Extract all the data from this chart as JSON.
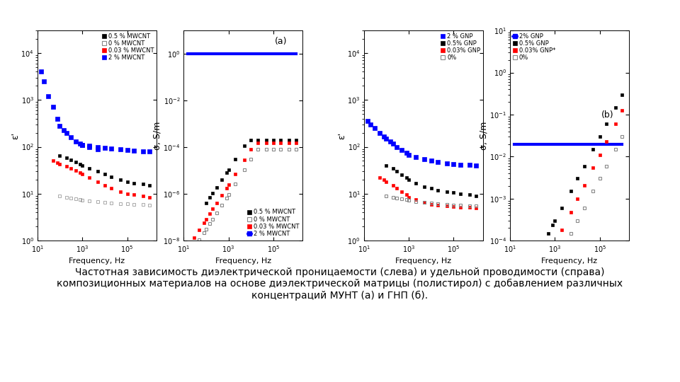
{
  "caption_line1": "Частотная зависимость диэлектрической проницаемости (слева) и удельной проводимости (справа)",
  "caption_line2": "композиционных материалов на основе диэлектрической матрицы (полистирол) с добавлением различных",
  "caption_line3": "концентраций МУНТ (а) и ГНП (б).",
  "caption_fontsize": 10,
  "bg_color": "#ffffff"
}
